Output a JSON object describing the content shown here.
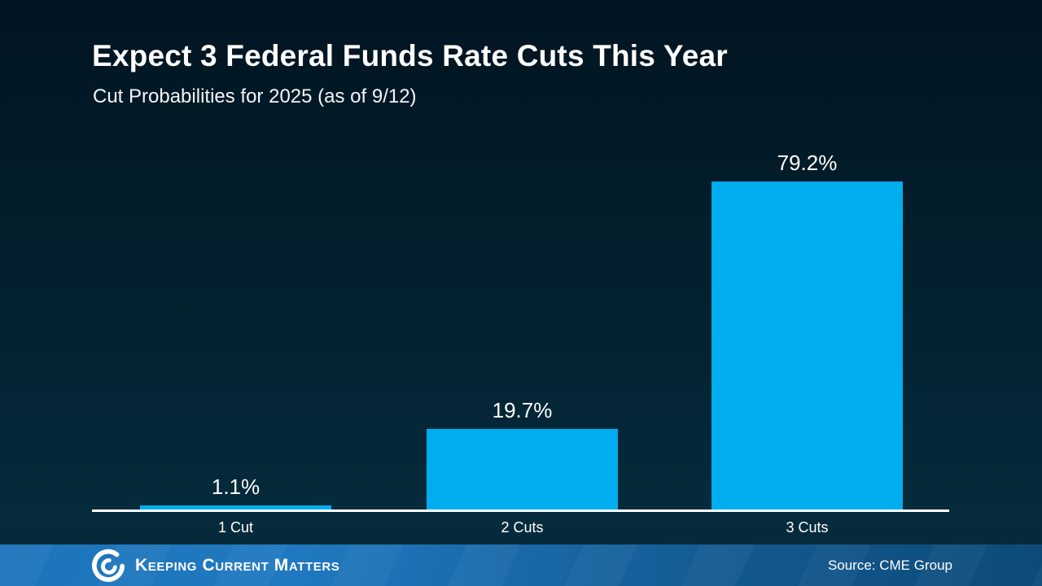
{
  "header": {
    "title": "Expect 3 Federal Funds Rate Cuts This Year",
    "subtitle": "Cut Probabilities for 2025 (as of 9/12)"
  },
  "chart_data": {
    "type": "bar",
    "categories": [
      "1 Cut",
      "2 Cuts",
      "3 Cuts"
    ],
    "values": [
      1.1,
      19.7,
      79.2
    ],
    "value_labels": [
      "1.1%",
      "19.7%",
      "79.2%"
    ],
    "title": "Expect 3 Federal Funds Rate Cuts This Year",
    "subtitle": "Cut Probabilities for 2025 (as of 9/12)",
    "xlabel": "",
    "ylabel": "",
    "ylim": [
      0,
      100
    ],
    "grid": false,
    "legend": false,
    "bar_color": "#00aeef",
    "axis_line_color": "#ffffff",
    "label_color": "#ffffff"
  },
  "footer": {
    "brand": "Keeping Current Matters",
    "source": "Source: CME Group",
    "bar_color_left": "#1d74ba",
    "bar_color_right": "#0d4a78",
    "logo_icon": "kcm-swirl-icon"
  },
  "colors": {
    "background_top": "#021421",
    "background_bottom": "#06293a",
    "text": "#ffffff"
  }
}
